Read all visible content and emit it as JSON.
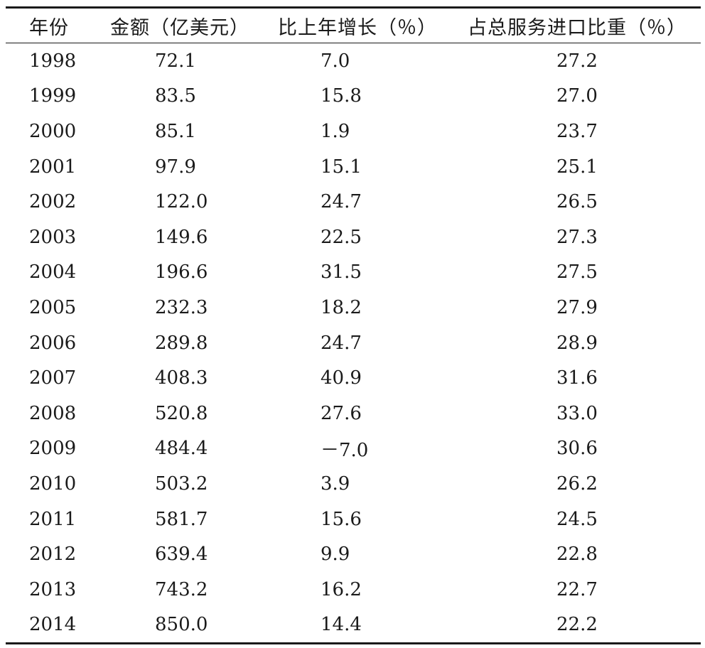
{
  "table": {
    "headers": {
      "year": "年份",
      "amount": "金额（亿美元）",
      "growth": "比上年增长（％）",
      "share": "占总服务进口比重（％）"
    },
    "rows": [
      {
        "year": "1998",
        "amount": "72.1",
        "growth": "7.0",
        "share": "27.2"
      },
      {
        "year": "1999",
        "amount": "83.5",
        "growth": "15.8",
        "share": "27.0"
      },
      {
        "year": "2000",
        "amount": "85.1",
        "growth": "1.9",
        "share": "23.7"
      },
      {
        "year": "2001",
        "amount": "97.9",
        "growth": "15.1",
        "share": "25.1"
      },
      {
        "year": "2002",
        "amount": "122.0",
        "growth": "24.7",
        "share": "26.5"
      },
      {
        "year": "2003",
        "amount": "149.6",
        "growth": "22.5",
        "share": "27.3"
      },
      {
        "year": "2004",
        "amount": "196.6",
        "growth": "31.5",
        "share": "27.5"
      },
      {
        "year": "2005",
        "amount": "232.3",
        "growth": "18.2",
        "share": "27.9"
      },
      {
        "year": "2006",
        "amount": "289.8",
        "growth": "24.7",
        "share": "28.9"
      },
      {
        "year": "2007",
        "amount": "408.3",
        "growth": "40.9",
        "share": "31.6"
      },
      {
        "year": "2008",
        "amount": "520.8",
        "growth": "27.6",
        "share": "33.0"
      },
      {
        "year": "2009",
        "amount": "484.4",
        "growth": "－7.0",
        "share": "30.6"
      },
      {
        "year": "2010",
        "amount": "503.2",
        "growth": "3.9",
        "share": "26.2"
      },
      {
        "year": "2011",
        "amount": "581.7",
        "growth": "15.6",
        "share": "24.5"
      },
      {
        "year": "2012",
        "amount": "639.4",
        "growth": "9.9",
        "share": "22.8"
      },
      {
        "year": "2013",
        "amount": "743.2",
        "growth": "16.2",
        "share": "22.7"
      },
      {
        "year": "2014",
        "amount": "850.0",
        "growth": "14.4",
        "share": "22.2"
      }
    ]
  }
}
